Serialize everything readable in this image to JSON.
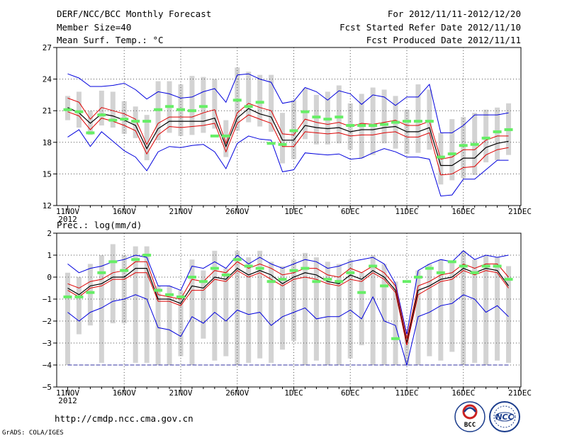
{
  "header": {
    "title": "DERF/NCC/BCC Monthly Forecast",
    "member_size": "Member Size=40",
    "variable": "Mean Surf. Temp.: °C",
    "period": "For 2012/11/11-2012/12/20",
    "start_date": "Fcst Started Refer Date 2012/11/10",
    "produced_date": "Fcst Produced Date 2012/11/11"
  },
  "footer": {
    "url": "http://cmdp.ncc.cma.gov.cn",
    "credit": "GrADS: COLA/IGES",
    "logo_bcc": "BCC",
    "logo_ncc": "NCC"
  },
  "colors": {
    "box": "#d3d3d3",
    "median": "#000000",
    "quartile": "#dd0000",
    "extreme": "#0000dd",
    "member": "#66ee66",
    "grid": "#555555",
    "zero_line": "#3030a0"
  },
  "chart_data": [
    {
      "type": "line",
      "title": "Mean Surf. Temp.: °C",
      "ylim": [
        12,
        27
      ],
      "yticks": [
        "27",
        "24",
        "21",
        "18",
        "15",
        "12"
      ],
      "xlim": [
        1,
        40
      ],
      "xticks": [
        {
          "day": 1,
          "label": "11NOV",
          "sub": "2012"
        },
        {
          "day": 6,
          "label": "16NOV"
        },
        {
          "day": 11,
          "label": "21NOV"
        },
        {
          "day": 16,
          "label": "26NOV"
        },
        {
          "day": 21,
          "label": "1DEC"
        },
        {
          "day": 26,
          "label": "6DEC"
        },
        {
          "day": 31,
          "label": "11DEC"
        },
        {
          "day": 36,
          "label": "16DEC"
        },
        {
          "day": 41,
          "label": "21DEC"
        }
      ],
      "x": [
        1,
        2,
        3,
        4,
        5,
        6,
        7,
        8,
        9,
        10,
        11,
        12,
        13,
        14,
        15,
        16,
        17,
        18,
        19,
        20,
        21,
        22,
        23,
        24,
        25,
        26,
        27,
        28,
        29,
        30,
        31,
        32,
        33,
        34,
        35,
        36,
        37,
        38,
        39,
        40
      ],
      "series": [
        {
          "name": "max",
          "values": [
            24.5,
            24.1,
            23.3,
            23.3,
            23.4,
            23.6,
            23.0,
            22.1,
            22.8,
            22.6,
            22.2,
            22.3,
            22.8,
            23.1,
            21.8,
            24.4,
            24.5,
            24.0,
            23.7,
            21.7,
            21.9,
            23.2,
            22.8,
            22.0,
            22.9,
            22.6,
            21.6,
            22.5,
            22.3,
            21.5,
            22.3,
            22.3,
            23.5,
            18.9,
            18.9,
            19.6,
            20.6,
            20.6,
            20.6,
            20.8
          ]
        },
        {
          "name": "upper_quartile",
          "values": [
            22.2,
            21.8,
            20.2,
            21.3,
            21.0,
            20.7,
            20.2,
            17.8,
            19.8,
            20.4,
            20.4,
            20.4,
            20.8,
            21.1,
            17.9,
            20.8,
            21.7,
            21.3,
            21.0,
            18.8,
            18.7,
            20.2,
            19.9,
            19.7,
            19.9,
            19.5,
            19.8,
            19.7,
            19.9,
            20.1,
            19.6,
            19.6,
            20.0,
            16.4,
            16.6,
            17.3,
            17.3,
            18.2,
            18.6,
            18.6
          ]
        },
        {
          "name": "median",
          "values": [
            21.3,
            20.8,
            19.8,
            20.7,
            20.5,
            20.1,
            19.6,
            17.4,
            19.3,
            20.0,
            20.0,
            20.0,
            20.0,
            20.3,
            17.6,
            20.3,
            21.2,
            20.7,
            20.4,
            18.2,
            18.2,
            19.6,
            19.4,
            19.3,
            19.4,
            19.0,
            19.2,
            19.2,
            19.4,
            19.5,
            19.0,
            19.0,
            19.4,
            15.8,
            15.8,
            16.5,
            16.5,
            17.5,
            17.9,
            18.1
          ]
        },
        {
          "name": "lower_quartile",
          "values": [
            20.9,
            20.5,
            19.2,
            20.3,
            20.0,
            19.6,
            19.1,
            16.9,
            18.7,
            19.5,
            19.4,
            19.5,
            19.6,
            19.8,
            17.1,
            19.8,
            20.6,
            20.2,
            19.8,
            17.6,
            17.6,
            19.0,
            18.9,
            18.8,
            18.9,
            18.6,
            18.7,
            18.7,
            18.9,
            19.0,
            18.5,
            18.5,
            18.9,
            14.9,
            15.0,
            15.6,
            15.7,
            16.8,
            17.3,
            17.5
          ]
        },
        {
          "name": "min",
          "values": [
            18.5,
            19.2,
            17.6,
            19.0,
            18.1,
            17.2,
            16.6,
            15.3,
            17.1,
            17.6,
            17.5,
            17.7,
            17.8,
            17.1,
            15.5,
            17.9,
            18.6,
            18.3,
            18.2,
            15.2,
            15.4,
            17.0,
            16.9,
            16.8,
            16.9,
            16.4,
            16.5,
            17.0,
            17.4,
            17.1,
            16.6,
            16.6,
            16.4,
            12.9,
            13.0,
            14.5,
            14.5,
            15.4,
            16.3,
            16.3
          ]
        }
      ],
      "boxes": [
        [
          20.1,
          22.4
        ],
        [
          19.4,
          22.8
        ],
        [
          18.7,
          21.0
        ],
        [
          19.6,
          22.9
        ],
        [
          19.4,
          22.8
        ],
        [
          18.8,
          21.9
        ],
        [
          18.4,
          21.4
        ],
        [
          16.3,
          20.6
        ],
        [
          18.2,
          23.8
        ],
        [
          18.9,
          23.8
        ],
        [
          18.6,
          23.5
        ],
        [
          18.7,
          24.3
        ],
        [
          18.9,
          24.2
        ],
        [
          19.3,
          24.0
        ],
        [
          16.6,
          20.1
        ],
        [
          19.1,
          25.1
        ],
        [
          19.9,
          24.7
        ],
        [
          19.5,
          24.4
        ],
        [
          19.0,
          24.4
        ],
        [
          16.0,
          20.8
        ],
        [
          16.4,
          22.0
        ],
        [
          18.3,
          23.1
        ],
        [
          17.8,
          22.5
        ],
        [
          17.8,
          22.8
        ],
        [
          17.9,
          23.4
        ],
        [
          17.3,
          21.7
        ],
        [
          16.5,
          22.6
        ],
        [
          16.8,
          23.2
        ],
        [
          17.9,
          23.0
        ],
        [
          17.4,
          22.4
        ],
        [
          16.9,
          21.1
        ],
        [
          17.0,
          23.5
        ],
        [
          17.3,
          23.0
        ],
        [
          14.0,
          18.9
        ],
        [
          14.4,
          20.2
        ],
        [
          14.6,
          20.4
        ],
        [
          14.9,
          20.8
        ],
        [
          16.1,
          21.1
        ],
        [
          16.3,
          21.3
        ],
        [
          16.8,
          21.7
        ]
      ],
      "members": [
        21.1,
        20.9,
        18.9,
        20.6,
        20.1,
        20.2,
        20.0,
        20.0,
        21.1,
        21.4,
        21.1,
        21.0,
        21.4,
        18.6,
        18.6,
        22.0,
        21.4,
        21.8,
        17.9,
        17.8,
        19.1,
        20.9,
        20.4,
        20.2,
        20.4,
        19.6,
        19.6,
        19.6,
        19.7,
        19.9,
        20.0,
        20.0,
        20.0,
        16.6,
        16.9,
        17.7,
        17.8,
        18.4,
        19.0,
        19.2
      ]
    },
    {
      "type": "line",
      "title": "Prec.: log(mm/d)",
      "ylim": [
        -5,
        2
      ],
      "yticks": [
        "2",
        "1",
        "0",
        "−1",
        "−2",
        "−3",
        "−4",
        "−5"
      ],
      "floor_value": -4,
      "xlim": [
        1,
        40
      ],
      "xticks": [
        {
          "day": 1,
          "label": "11NOV",
          "sub": "2012"
        },
        {
          "day": 6,
          "label": "16NOV"
        },
        {
          "day": 11,
          "label": "21NOV"
        },
        {
          "day": 16,
          "label": "26NOV"
        },
        {
          "day": 21,
          "label": "1DEC"
        },
        {
          "day": 26,
          "label": "6DEC"
        },
        {
          "day": 31,
          "label": "11DEC"
        },
        {
          "day": 36,
          "label": "16DEC"
        },
        {
          "day": 41,
          "label": "21DEC"
        }
      ],
      "x": [
        1,
        2,
        3,
        4,
        5,
        6,
        7,
        8,
        9,
        10,
        11,
        12,
        13,
        14,
        15,
        16,
        17,
        18,
        19,
        20,
        21,
        22,
        23,
        24,
        25,
        26,
        27,
        28,
        29,
        30,
        31,
        32,
        33,
        34,
        35,
        36,
        37,
        38,
        39,
        40
      ],
      "series": [
        {
          "name": "max",
          "values": [
            0.6,
            0.2,
            0.4,
            0.5,
            0.7,
            0.8,
            1.0,
            0.9,
            -0.4,
            -0.4,
            -0.6,
            0.5,
            0.4,
            0.7,
            0.4,
            1.0,
            0.6,
            0.9,
            0.6,
            0.4,
            0.6,
            0.8,
            0.7,
            0.4,
            0.5,
            0.7,
            0.8,
            0.9,
            0.6,
            -0.3,
            -2.6,
            0.3,
            0.6,
            0.8,
            0.7,
            1.2,
            0.8,
            1.0,
            0.9,
            1.0
          ]
        },
        {
          "name": "upper_quartile",
          "values": [
            -0.3,
            -0.5,
            -0.2,
            -0.1,
            0.2,
            0.3,
            0.7,
            0.7,
            -0.8,
            -0.9,
            -1.0,
            -0.1,
            -0.2,
            0.3,
            0.2,
            0.7,
            0.4,
            0.6,
            0.4,
            0.1,
            0.2,
            0.4,
            0.4,
            0.1,
            0.0,
            0.4,
            0.2,
            0.5,
            0.2,
            -0.4,
            -2.8,
            -0.4,
            -0.2,
            0.1,
            0.2,
            0.6,
            0.4,
            0.6,
            0.6,
            0.0
          ]
        },
        {
          "name": "median",
          "values": [
            -0.5,
            -0.8,
            -0.4,
            -0.3,
            0.0,
            0.0,
            0.4,
            0.4,
            -1.0,
            -1.0,
            -1.2,
            -0.4,
            -0.5,
            0.0,
            -0.1,
            0.4,
            0.1,
            0.3,
            0.1,
            -0.3,
            0.0,
            0.2,
            0.1,
            -0.2,
            -0.3,
            0.1,
            -0.1,
            0.3,
            0.0,
            -0.6,
            -3.0,
            -0.6,
            -0.4,
            -0.1,
            0.0,
            0.4,
            0.2,
            0.4,
            0.3,
            -0.4
          ]
        },
        {
          "name": "lower_quartile",
          "values": [
            -0.6,
            -0.9,
            -0.5,
            -0.4,
            -0.1,
            -0.1,
            0.2,
            0.2,
            -1.1,
            -1.1,
            -1.3,
            -0.6,
            -0.6,
            -0.1,
            -0.2,
            0.3,
            0.0,
            0.2,
            -0.1,
            -0.4,
            -0.1,
            0.0,
            -0.1,
            -0.3,
            -0.4,
            -0.1,
            -0.2,
            0.2,
            -0.1,
            -0.7,
            -3.1,
            -0.8,
            -0.5,
            -0.2,
            -0.1,
            0.3,
            0.1,
            0.3,
            0.2,
            -0.5
          ]
        },
        {
          "name": "min",
          "values": [
            -1.6,
            -2.0,
            -1.6,
            -1.4,
            -1.1,
            -1.0,
            -0.8,
            -1.0,
            -2.3,
            -2.4,
            -2.7,
            -1.8,
            -2.1,
            -1.6,
            -2.0,
            -1.5,
            -1.7,
            -1.6,
            -2.2,
            -1.8,
            -1.6,
            -1.4,
            -1.9,
            -1.8,
            -1.8,
            -1.5,
            -1.9,
            -0.9,
            -2.0,
            -2.2,
            -4.0,
            -1.8,
            -1.6,
            -1.3,
            -1.2,
            -0.8,
            -1.0,
            -1.6,
            -1.3,
            -1.8
          ]
        },
        {
          "name": "zero_floor",
          "values": [
            -4,
            -4,
            -4,
            -4,
            -4,
            -4,
            -4,
            -4,
            -4,
            -4,
            -4,
            -4,
            -4,
            -4,
            -4,
            -4,
            -4,
            -4,
            -4,
            -4,
            -4,
            -4,
            -4,
            -4,
            -4,
            -4,
            -4,
            -4,
            -4,
            -4,
            -4,
            -4,
            -4,
            -4,
            -4,
            -4,
            -4,
            -4,
            -4,
            -4
          ]
        }
      ],
      "boxes": [
        [
          -4.0,
          0.2
        ],
        [
          -2.6,
          0.0
        ],
        [
          -2.2,
          0.6
        ],
        [
          -3.9,
          1.0
        ],
        [
          -2.1,
          1.5
        ],
        [
          -2.1,
          1.0
        ],
        [
          -3.9,
          1.4
        ],
        [
          -3.9,
          1.4
        ],
        [
          -4.0,
          -0.4
        ],
        [
          -4.0,
          -0.4
        ],
        [
          -3.6,
          -0.6
        ],
        [
          -4.0,
          0.8
        ],
        [
          -2.8,
          0.3
        ],
        [
          -3.8,
          1.2
        ],
        [
          -3.6,
          0.4
        ],
        [
          -4.0,
          1.2
        ],
        [
          -3.9,
          0.9
        ],
        [
          -3.7,
          1.2
        ],
        [
          -3.9,
          0.7
        ],
        [
          -3.3,
          0.5
        ],
        [
          -2.9,
          0.8
        ],
        [
          -4.0,
          1.1
        ],
        [
          -3.8,
          0.9
        ],
        [
          -4.0,
          0.7
        ],
        [
          -4.0,
          0.6
        ],
        [
          -3.7,
          0.8
        ],
        [
          -3.1,
          0.2
        ],
        [
          -4.0,
          1.0
        ],
        [
          -4.0,
          0.6
        ],
        [
          -4.0,
          -0.2
        ],
        [
          -4.0,
          -2.5
        ],
        [
          -4.0,
          0.3
        ],
        [
          -3.6,
          0.6
        ],
        [
          -3.8,
          0.8
        ],
        [
          -3.4,
          0.7
        ],
        [
          -4.0,
          1.2
        ],
        [
          -3.9,
          0.8
        ],
        [
          -4.0,
          1.0
        ],
        [
          -3.8,
          0.9
        ],
        [
          -3.9,
          0.5
        ]
      ],
      "members": [
        -0.9,
        -0.9,
        -0.7,
        0.2,
        0.7,
        0.3,
        0.8,
        1.0,
        -0.6,
        -0.8,
        -0.9,
        0.0,
        -0.2,
        0.4,
        0.1,
        0.8,
        0.5,
        0.4,
        -0.2,
        -0.1,
        0.3,
        0.4,
        -0.2,
        -0.1,
        -0.2,
        0.2,
        -0.7,
        0.5,
        -0.4,
        -2.8,
        -0.2,
        0.0,
        0.4,
        0.2,
        0.7,
        0.5,
        0.2,
        0.5,
        0.5,
        -0.1
      ]
    }
  ]
}
